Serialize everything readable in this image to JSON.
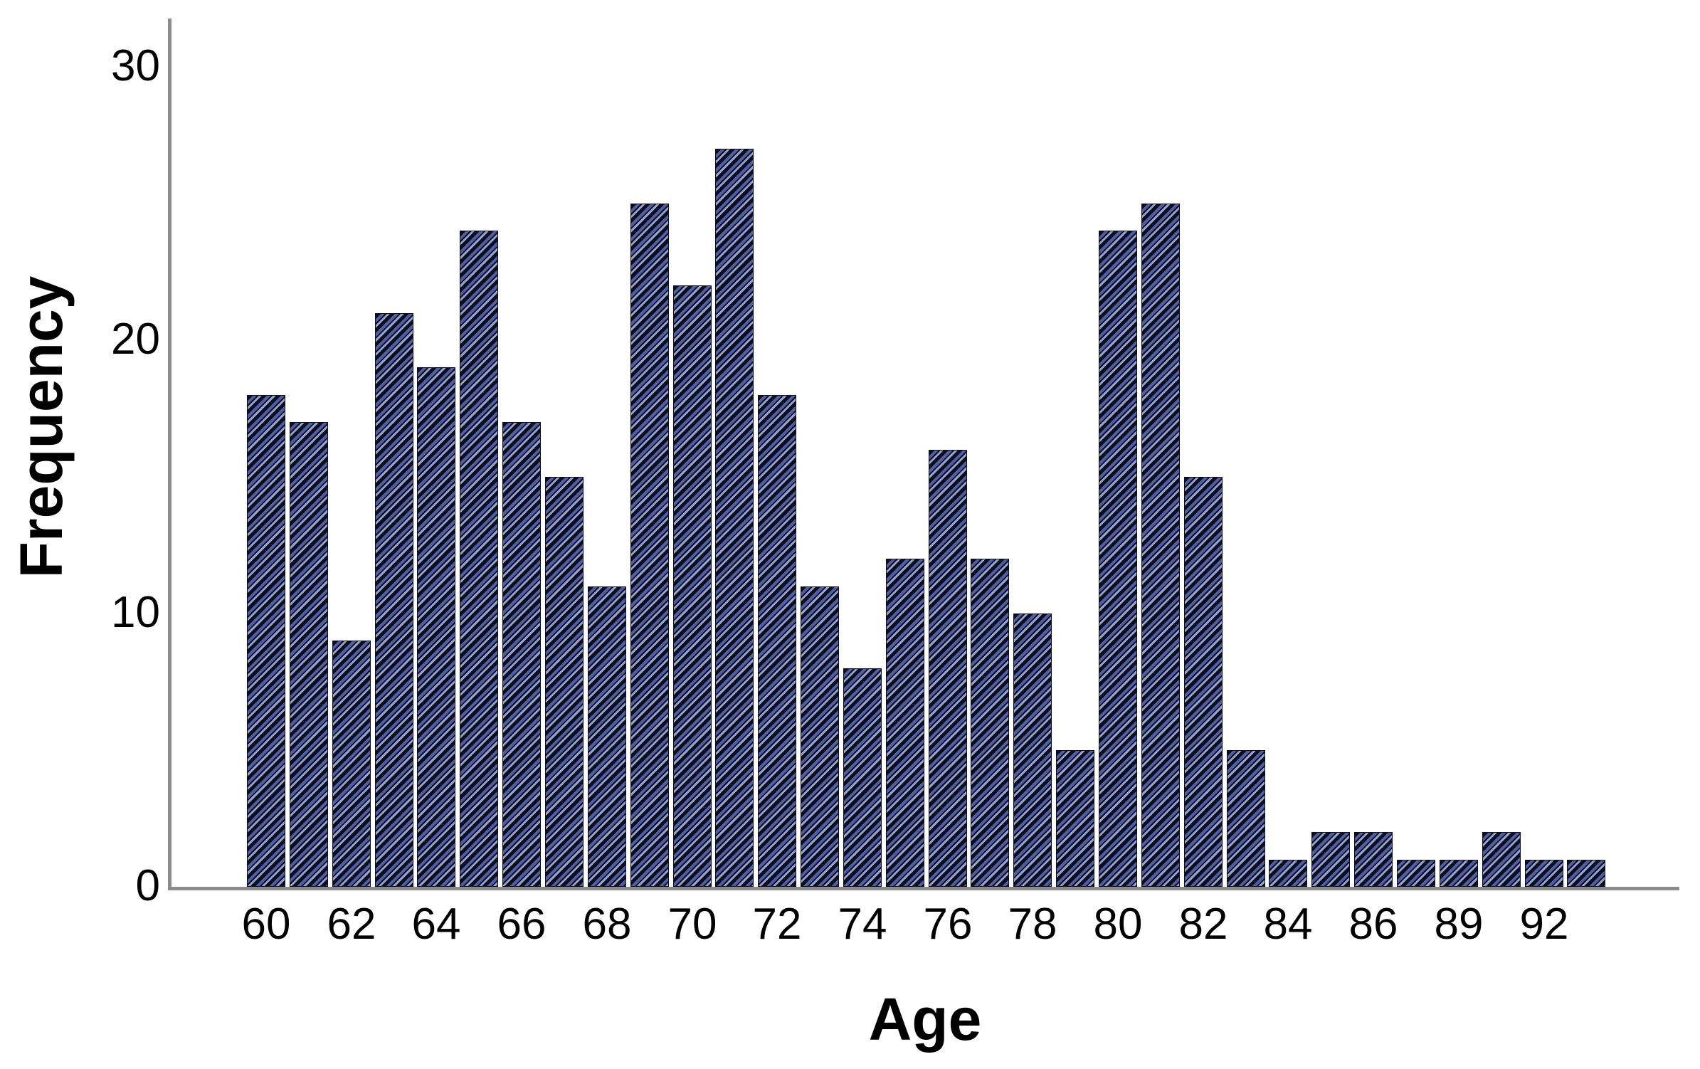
{
  "chart_data": {
    "type": "bar",
    "title": "",
    "xlabel": "Age",
    "ylabel": "Frequency",
    "categories": [
      "60",
      "61",
      "62",
      "63",
      "64",
      "65",
      "66",
      "67",
      "68",
      "69",
      "70",
      "71",
      "72",
      "73",
      "74",
      "75",
      "76",
      "77",
      "78",
      "79",
      "80",
      "81",
      "82",
      "83",
      "84",
      "85",
      "86",
      "88",
      "89",
      "90",
      "92",
      "93"
    ],
    "values": [
      18,
      17,
      9,
      21,
      19,
      24,
      17,
      15,
      11,
      25,
      22,
      27,
      18,
      11,
      8,
      12,
      16,
      12,
      10,
      5,
      24,
      25,
      15,
      5,
      1,
      2,
      2,
      1,
      1,
      2,
      1,
      1
    ],
    "x_tick_every": 2,
    "x_tick_labels": [
      "60",
      "62",
      "64",
      "66",
      "68",
      "70",
      "72",
      "74",
      "76",
      "78",
      "80",
      "82",
      "84",
      "86",
      "89",
      "92"
    ],
    "y_ticks": [
      "0",
      "10",
      "20",
      "30"
    ],
    "y_tick_values": [
      0,
      10,
      20,
      30
    ],
    "ylim": [
      0,
      31.8
    ],
    "grid": false,
    "legend_position": "none",
    "bar_hatch": "diagonal-forward-slash"
  },
  "colors": {
    "background": "#ffffff",
    "axis_line": "#8c8c8c",
    "text": "#000000",
    "bar_dark": "#0a0e1e",
    "bar_blue": "#4d60a6",
    "bar_light": "#97a3cc"
  }
}
